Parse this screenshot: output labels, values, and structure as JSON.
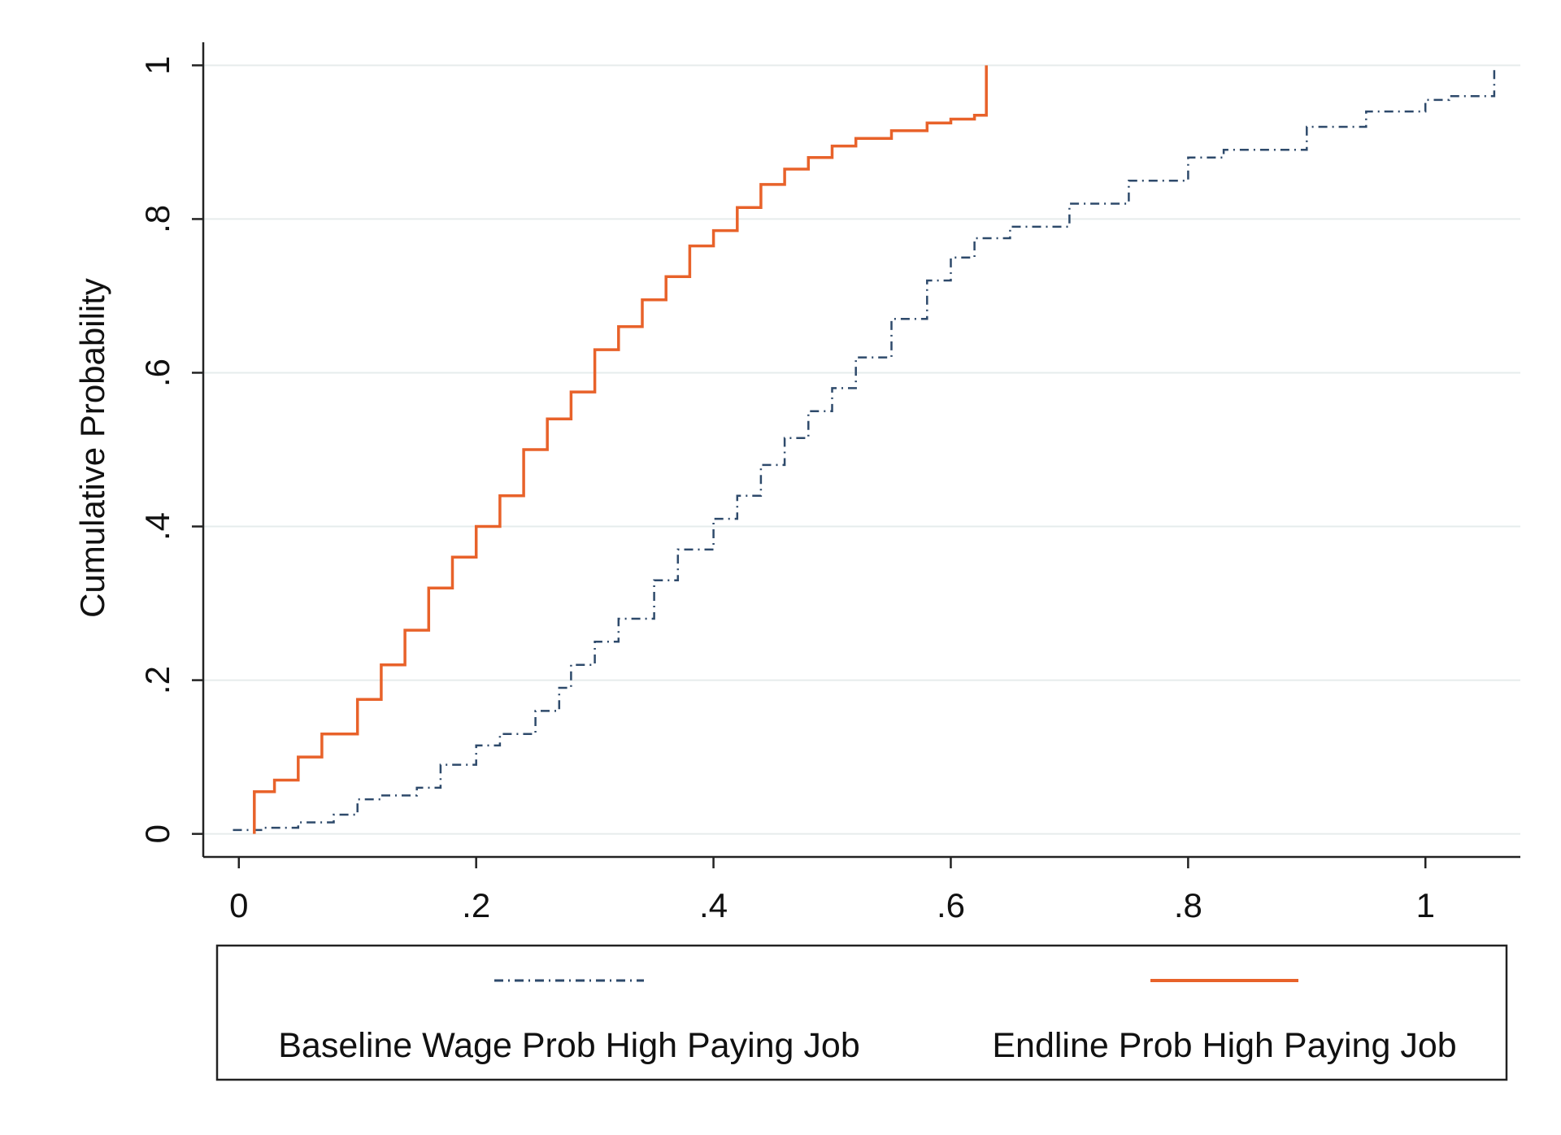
{
  "chart_data": {
    "type": "line",
    "title": "",
    "xlabel": "",
    "ylabel": "Cumulative Probability",
    "xlim": [
      -0.03,
      1.08
    ],
    "ylim": [
      -0.03,
      1.03
    ],
    "xticks": [
      {
        "value": 0,
        "label": "0"
      },
      {
        "value": 0.2,
        "label": ".2"
      },
      {
        "value": 0.4,
        "label": ".4"
      },
      {
        "value": 0.6,
        "label": ".6"
      },
      {
        "value": 0.8,
        "label": ".8"
      },
      {
        "value": 1,
        "label": "1"
      }
    ],
    "yticks": [
      {
        "value": 0,
        "label": "0"
      },
      {
        "value": 0.2,
        "label": ".2"
      },
      {
        "value": 0.4,
        "label": ".4"
      },
      {
        "value": 0.6,
        "label": ".6"
      },
      {
        "value": 0.8,
        "label": ".8"
      },
      {
        "value": 1,
        "label": "1"
      }
    ],
    "grid": "horizontal",
    "legend": "bottom",
    "series": [
      {
        "name": "Baseline Wage Prob High Paying Job",
        "color": "#2e4a6b",
        "style": "dash-dot",
        "x": [
          -0.005,
          0.02,
          0.05,
          0.08,
          0.1,
          0.12,
          0.15,
          0.17,
          0.2,
          0.22,
          0.25,
          0.27,
          0.28,
          0.3,
          0.32,
          0.35,
          0.37,
          0.4,
          0.42,
          0.44,
          0.46,
          0.48,
          0.5,
          0.52,
          0.55,
          0.58,
          0.6,
          0.62,
          0.65,
          0.7,
          0.75,
          0.8,
          0.83,
          0.9,
          0.95,
          1.0,
          1.02,
          1.05,
          1.058
        ],
        "y": [
          0.005,
          0.008,
          0.015,
          0.025,
          0.045,
          0.05,
          0.06,
          0.09,
          0.115,
          0.13,
          0.16,
          0.19,
          0.22,
          0.25,
          0.28,
          0.33,
          0.37,
          0.41,
          0.44,
          0.48,
          0.515,
          0.55,
          0.58,
          0.62,
          0.67,
          0.72,
          0.75,
          0.775,
          0.79,
          0.82,
          0.85,
          0.88,
          0.89,
          0.92,
          0.94,
          0.955,
          0.96,
          0.96,
          0.995
        ]
      },
      {
        "name": "Endline Prob High Paying Job",
        "color": "#e8622a",
        "style": "solid",
        "x": [
          0.013,
          0.013,
          0.03,
          0.05,
          0.07,
          0.1,
          0.12,
          0.14,
          0.16,
          0.18,
          0.2,
          0.22,
          0.24,
          0.26,
          0.28,
          0.3,
          0.32,
          0.34,
          0.36,
          0.38,
          0.4,
          0.42,
          0.44,
          0.46,
          0.48,
          0.5,
          0.52,
          0.55,
          0.58,
          0.6,
          0.62,
          0.63,
          0.63
        ],
        "y": [
          0.0,
          0.055,
          0.07,
          0.1,
          0.13,
          0.175,
          0.22,
          0.265,
          0.32,
          0.36,
          0.4,
          0.44,
          0.5,
          0.54,
          0.575,
          0.63,
          0.66,
          0.695,
          0.725,
          0.765,
          0.785,
          0.815,
          0.845,
          0.865,
          0.88,
          0.895,
          0.905,
          0.915,
          0.925,
          0.93,
          0.935,
          0.935,
          1.0
        ]
      }
    ]
  }
}
